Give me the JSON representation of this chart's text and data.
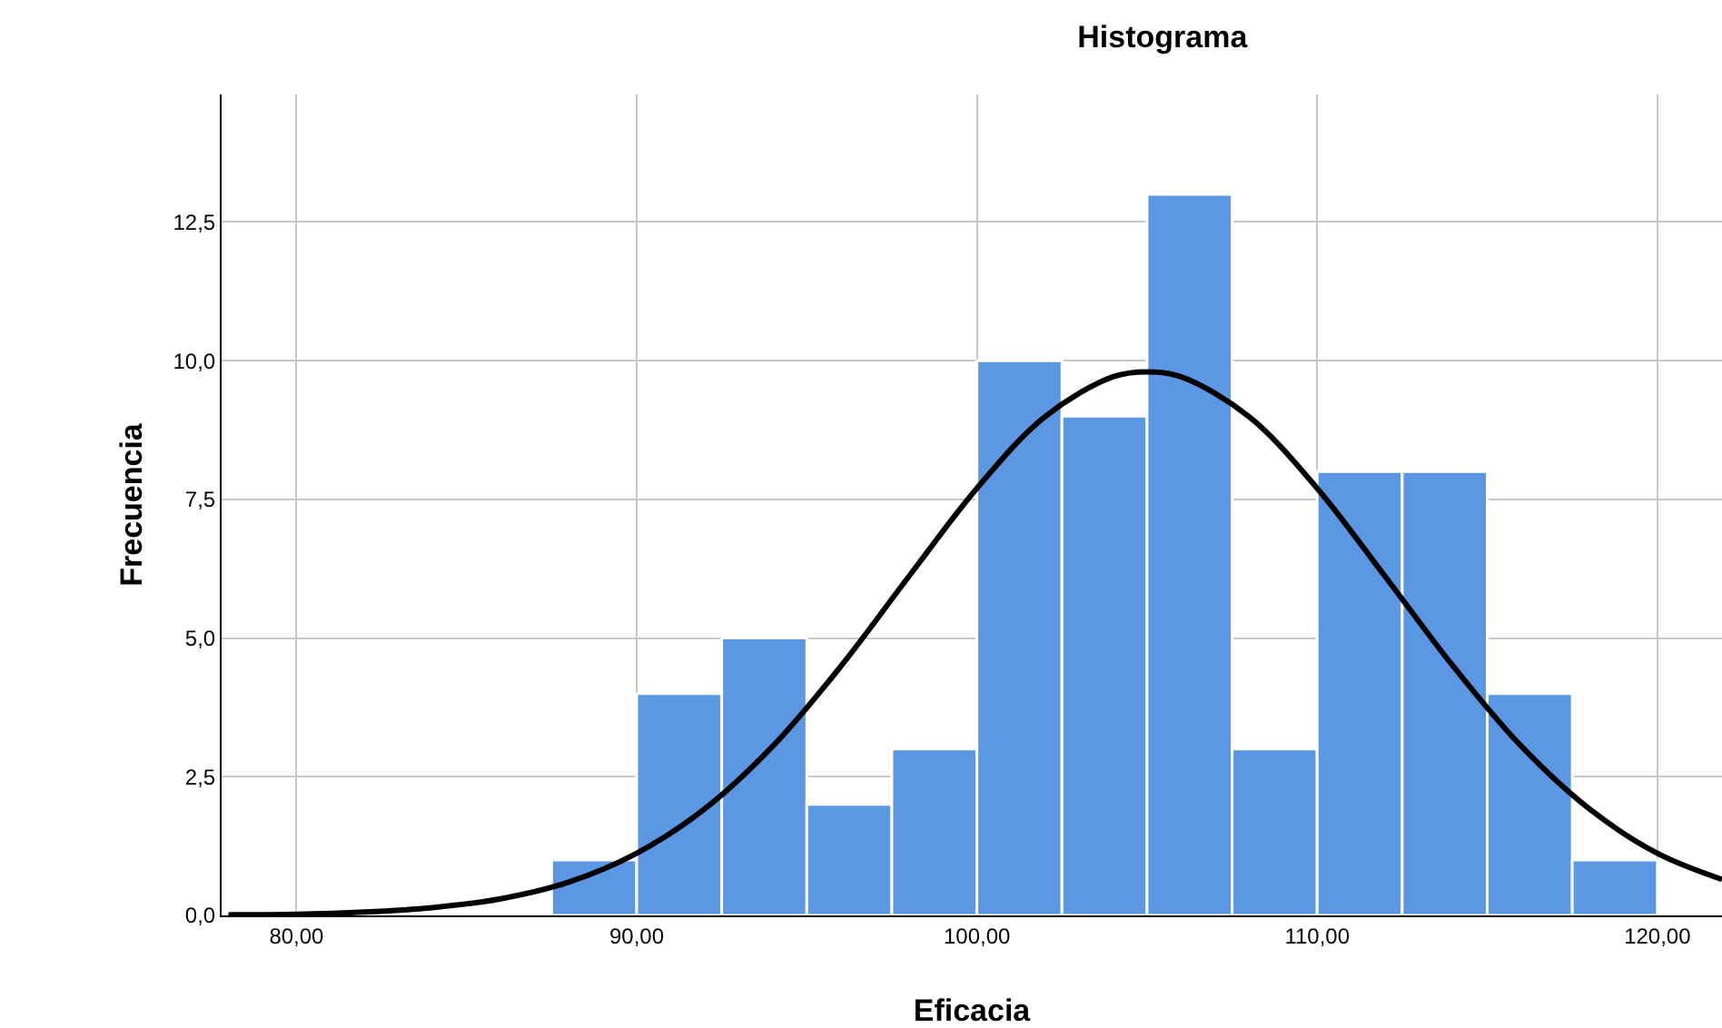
{
  "chart_data": {
    "type": "histogram",
    "title": "Histograma",
    "xlabel": "Eficacia",
    "ylabel": "Frecuencia",
    "bins": [
      87.5,
      90,
      92.5,
      95,
      97.5,
      100,
      102.5,
      105,
      107.5,
      110,
      112.5,
      115,
      117.5,
      120
    ],
    "values": [
      1,
      4,
      5,
      2,
      3,
      10,
      9,
      13,
      3,
      8,
      8,
      4,
      1
    ],
    "color": "#5b97e3",
    "series": [
      {
        "type": "line",
        "color": "#000000",
        "x": [
          78,
          80,
          82,
          84,
          86,
          88,
          90,
          92,
          94,
          96,
          98,
          100,
          102,
          104,
          105,
          106,
          108,
          110,
          112,
          114,
          116,
          118,
          120,
          121.9
        ],
        "values": [
          0.01,
          0.02,
          0.06,
          0.14,
          0.3,
          0.6,
          1.12,
          1.92,
          3.05,
          4.49,
          6.11,
          7.7,
          8.99,
          9.71,
          9.8,
          9.71,
          8.99,
          7.7,
          6.11,
          4.49,
          3.05,
          1.92,
          1.12,
          0.65
        ]
      }
    ],
    "xlim": [
      77.8,
      121.9
    ],
    "xticks": [
      {
        "value": 80,
        "label": "80,00"
      },
      {
        "value": 90,
        "label": "90,00"
      },
      {
        "value": 100,
        "label": "100,00"
      },
      {
        "value": 110,
        "label": "110,00"
      },
      {
        "value": 120,
        "label": "120,00"
      }
    ],
    "ylim": [
      0,
      14.8
    ],
    "yticks": [
      {
        "value": 0,
        "label": "0,0"
      },
      {
        "value": 2.5,
        "label": "2,5"
      },
      {
        "value": 5,
        "label": "5,0"
      },
      {
        "value": 7.5,
        "label": "7,5"
      },
      {
        "value": 10,
        "label": "10,0"
      },
      {
        "value": 12.5,
        "label": "12,5"
      }
    ],
    "grid": true,
    "marker": "none",
    "line_style": "solid"
  }
}
